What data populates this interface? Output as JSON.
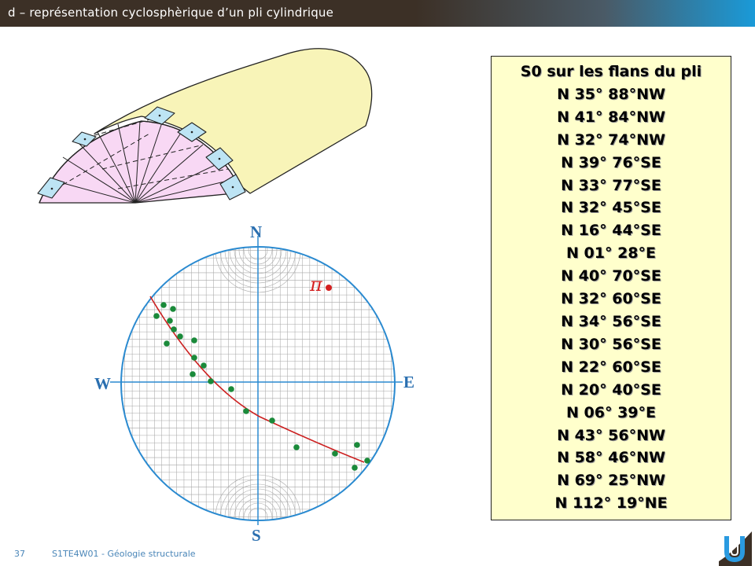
{
  "slide": {
    "title": "d – représentation cyclosphèrique d’un pli cylindrique",
    "page_number": "37",
    "course": "S1TE4W01 - Géologie structurale"
  },
  "stereonet": {
    "north_label": "N",
    "south_label": "S",
    "east_label": "E",
    "west_label": "W",
    "pole_label": "π"
  },
  "data_box": {
    "heading": "S0 sur les flans du pli",
    "measurements": [
      "N 35° 88°NW",
      "N 41° 84°NW",
      "N 32° 74°NW",
      "N 39° 76°SE",
      "N 33° 77°SE",
      "N 32° 45°SE",
      "N 16° 44°SE",
      "N 01° 28°E",
      "N 40° 70°SE",
      "N 32° 60°SE",
      "N 34° 56°SE",
      "N 30° 56°SE",
      "N 22° 60°SE",
      "N 20° 40°SE",
      "N 06° 39°E",
      "N 43° 56°NW",
      "N 58° 46°NW",
      "N 69° 25°NW",
      "N 112° 19°NE"
    ]
  },
  "colors": {
    "poles": "#1a8a3a",
    "pi_axis": "#d42020",
    "great_circle": "#cc2020",
    "primitive": "#2a8ad0",
    "fold_outer": "#f8f4b8",
    "fold_section": "#f8d8f4",
    "planes": "#bde4f4"
  }
}
